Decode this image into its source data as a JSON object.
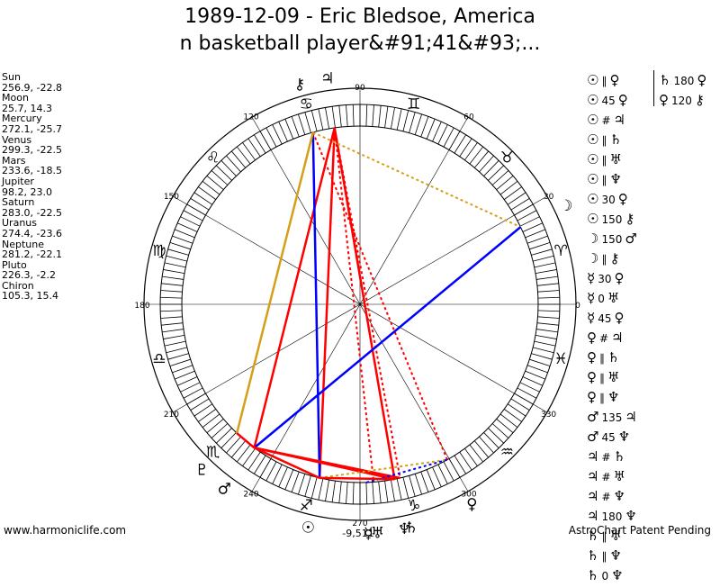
{
  "title": {
    "line1": "1989-12-09 - Eric Bledsoe, America",
    "line2": "n basketball player&#91;41&#93;..."
  },
  "bodies": [
    {
      "name": "Sun",
      "coords": "256.9, -22.8",
      "lon": 256.9,
      "glyph": "☉"
    },
    {
      "name": "Moon",
      "coords": "25.7, 14.3",
      "lon": 25.7,
      "glyph": "☽"
    },
    {
      "name": "Mercury",
      "coords": "272.1, -25.7",
      "lon": 272.1,
      "glyph": "☿"
    },
    {
      "name": "Venus",
      "coords": "299.3, -22.5",
      "lon": 299.3,
      "glyph": "♀"
    },
    {
      "name": "Mars",
      "coords": "233.6, -18.5",
      "lon": 233.6,
      "glyph": "♂"
    },
    {
      "name": "Jupiter",
      "coords": "98.2, 23.0",
      "lon": 98.2,
      "glyph": "♃"
    },
    {
      "name": "Saturn",
      "coords": "283.0, -22.5",
      "lon": 283.0,
      "glyph": "♄"
    },
    {
      "name": "Uranus",
      "coords": "274.4, -23.6",
      "lon": 274.4,
      "glyph": "♅"
    },
    {
      "name": "Neptune",
      "coords": "281.2, -22.1",
      "lon": 281.2,
      "glyph": "♆"
    },
    {
      "name": "Pluto",
      "coords": "226.3, -2.2",
      "lon": 226.3,
      "glyph": "♇"
    },
    {
      "name": "Chiron",
      "coords": "105.3, 15.4",
      "lon": 105.3,
      "glyph": "⚷"
    }
  ],
  "aspects_col1": [
    {
      "p1": "☉",
      "a": "∥",
      "p2": "♀"
    },
    {
      "p1": "☉",
      "a": "45",
      "p2": "♀"
    },
    {
      "p1": "☉",
      "a": "#",
      "p2": "♃"
    },
    {
      "p1": "☉",
      "a": "∥",
      "p2": "♄"
    },
    {
      "p1": "☉",
      "a": "∥",
      "p2": "♅"
    },
    {
      "p1": "☉",
      "a": "∥",
      "p2": "♆"
    },
    {
      "p1": "☉",
      "a": "30",
      "p2": "♀"
    },
    {
      "p1": "☉",
      "a": "150",
      "p2": "⚷"
    },
    {
      "p1": "☽",
      "a": "150",
      "p2": "♂"
    },
    {
      "p1": "☽",
      "a": "∥",
      "p2": "⚷"
    },
    {
      "p1": "☿",
      "a": "30",
      "p2": "♀"
    },
    {
      "p1": "☿",
      "a": "0",
      "p2": "♅"
    },
    {
      "p1": "☿",
      "a": "45",
      "p2": "♀"
    },
    {
      "p1": "♀",
      "a": "#",
      "p2": "♃"
    },
    {
      "p1": "♀",
      "a": "∥",
      "p2": "♄"
    },
    {
      "p1": "♀",
      "a": "∥",
      "p2": "♅"
    },
    {
      "p1": "♀",
      "a": "∥",
      "p2": "♆"
    },
    {
      "p1": "♂",
      "a": "135",
      "p2": "♃"
    },
    {
      "p1": "♂",
      "a": "45",
      "p2": "♆"
    },
    {
      "p1": "♃",
      "a": "#",
      "p2": "♄"
    },
    {
      "p1": "♃",
      "a": "#",
      "p2": "♅"
    },
    {
      "p1": "♃",
      "a": "#",
      "p2": "♆"
    },
    {
      "p1": "♃",
      "a": "180",
      "p2": "♆"
    },
    {
      "p1": "♄",
      "a": "∥",
      "p2": "♅"
    },
    {
      "p1": "♄",
      "a": "∥",
      "p2": "♆"
    },
    {
      "p1": "♄",
      "a": "0",
      "p2": "♆"
    }
  ],
  "aspects_col2": [
    {
      "p1": "♄",
      "a": "180",
      "p2": "♀"
    },
    {
      "p1": "♀",
      "a": "120",
      "p2": "⚷"
    }
  ],
  "wheel": {
    "degree_labels": [
      "0",
      "30",
      "60",
      "90",
      "120",
      "150",
      "180",
      "210",
      "240",
      "270",
      "300",
      "330"
    ],
    "signs": [
      "♈",
      "♉",
      "♊",
      "♋",
      "♌",
      "♍",
      "♎",
      "♏",
      "♐",
      "♑",
      "♒",
      "♓"
    ],
    "bottom_label": "-9,511"
  },
  "lines": [
    {
      "a": "Jupiter",
      "b": "Mars",
      "color": "#ff0000",
      "style": "solid"
    },
    {
      "a": "Jupiter",
      "b": "Sun",
      "color": "#ff0000",
      "style": "solid"
    },
    {
      "a": "Jupiter",
      "b": "Neptune",
      "color": "#ff0000",
      "style": "solid"
    },
    {
      "a": "Jupiter",
      "b": "Saturn",
      "color": "#ff0000",
      "style": "dotted"
    },
    {
      "a": "Jupiter",
      "b": "Uranus",
      "color": "#ff0000",
      "style": "dotted"
    },
    {
      "a": "Chiron",
      "b": "Sun",
      "color": "#0000ff",
      "style": "solid"
    },
    {
      "a": "Chiron",
      "b": "Venus",
      "color": "#ff0000",
      "style": "dotted"
    },
    {
      "a": "Chiron",
      "b": "Pluto",
      "color": "#d4a017",
      "style": "solid"
    },
    {
      "a": "Chiron",
      "b": "Moon",
      "color": "#d4a017",
      "style": "dotted"
    },
    {
      "a": "Moon",
      "b": "Mars",
      "color": "#0000ff",
      "style": "solid"
    },
    {
      "a": "Mars",
      "b": "Neptune",
      "color": "#ff0000",
      "style": "solid"
    },
    {
      "a": "Mars",
      "b": "Sun",
      "color": "#ff0000",
      "style": "solid"
    },
    {
      "a": "Mars",
      "b": "Saturn",
      "color": "#ff0000",
      "style": "solid"
    },
    {
      "a": "Pluto",
      "b": "Mars",
      "color": "#ff0000",
      "style": "solid"
    },
    {
      "a": "Sun",
      "b": "Venus",
      "color": "#d4a017",
      "style": "dotted"
    },
    {
      "a": "Mercury",
      "b": "Venus",
      "color": "#0000ff",
      "style": "dotted"
    },
    {
      "a": "Sun",
      "b": "Neptune",
      "color": "#ff0000",
      "style": "solid"
    }
  ],
  "footer": {
    "left": "www.harmoniclife.com",
    "right": "AstroChart Patent Pending"
  },
  "colors": {
    "hard": "#ff0000",
    "soft": "#0000ff",
    "minor": "#d4a017"
  }
}
